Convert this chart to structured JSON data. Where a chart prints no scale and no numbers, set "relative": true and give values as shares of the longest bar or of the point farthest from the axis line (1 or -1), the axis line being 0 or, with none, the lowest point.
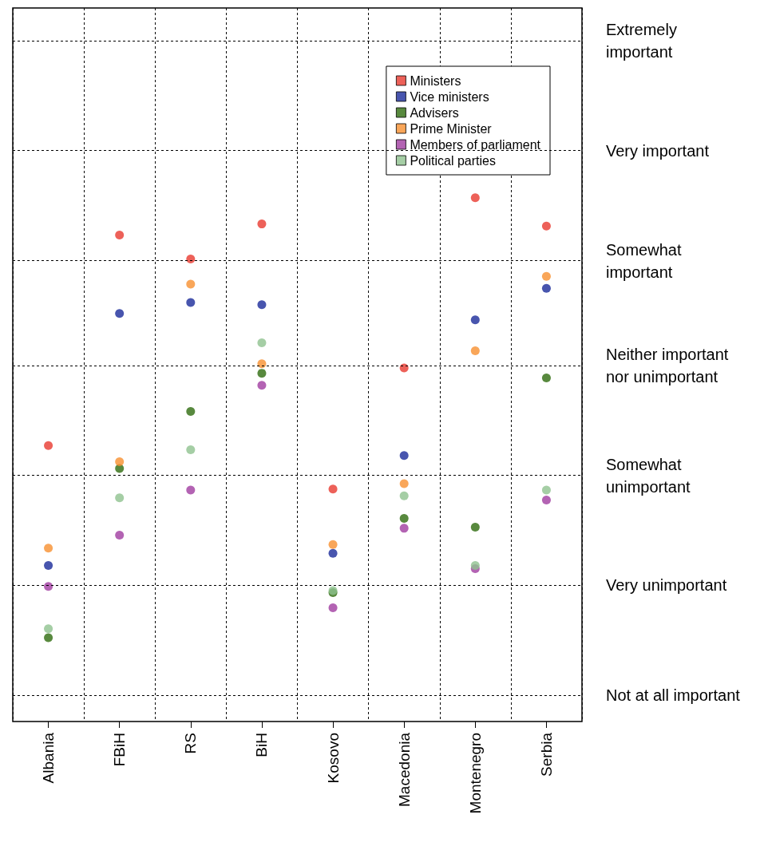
{
  "chart_data": {
    "type": "scatter",
    "categories": [
      "Albania",
      "FBiH",
      "RS",
      "BiH",
      "Kosovo",
      "Macedonia",
      "Montenegro",
      "Serbia"
    ],
    "relative": true,
    "grid": "x",
    "legend": "top right",
    "marker": "circle",
    "ref_lines": [
      {
        "axis": "y",
        "value": 0.05,
        "label": "Not at all important",
        "line_style": "dashed"
      },
      {
        "axis": "y",
        "value": 0.258,
        "label": "Very unimportant",
        "line_style": "dashed"
      },
      {
        "axis": "y",
        "value": 0.467,
        "label": "Somewhat unimportant",
        "line_style": "dashed"
      },
      {
        "axis": "y",
        "value": 0.675,
        "label": "Neither important nor unimportant",
        "line_style": "dashed"
      },
      {
        "axis": "y",
        "value": 0.883,
        "label": "Somewhat important",
        "line_style": "dashed"
      },
      {
        "axis": "y",
        "value": 1.092,
        "label": "Very important",
        "line_style": "dashed"
      },
      {
        "axis": "y",
        "value": 1.3,
        "label": "Extremely important",
        "line_style": "dashed"
      }
    ],
    "series": [
      {
        "name": "Ministers",
        "color": "#e8392f",
        "values": [
          0.527,
          0.929,
          0.883,
          0.95,
          0.444,
          0.675,
          1.0,
          0.946
        ]
      },
      {
        "name": "Vice ministers",
        "color": "#1a2b9a",
        "values": [
          0.298,
          0.779,
          0.8,
          0.796,
          0.321,
          0.508,
          0.767,
          0.827
        ]
      },
      {
        "name": "Advisers",
        "color": "#2e6b0e",
        "values": [
          0.16,
          0.483,
          0.592,
          0.665,
          0.246,
          0.388,
          0.371,
          0.656
        ]
      },
      {
        "name": "Prime Minister",
        "color": "#f7902f",
        "values": [
          0.331,
          0.496,
          0.835,
          0.683,
          0.338,
          0.454,
          0.708,
          0.85
        ]
      },
      {
        "name": "Members of parliament",
        "color": "#a03ca0",
        "values": [
          0.258,
          0.356,
          0.442,
          0.642,
          0.217,
          0.369,
          0.292,
          0.423
        ]
      },
      {
        "name": "Political parties",
        "color": "#8fc28f",
        "values": [
          0.177,
          0.427,
          0.519,
          0.723,
          0.25,
          0.431,
          0.298,
          0.442
        ]
      }
    ]
  }
}
